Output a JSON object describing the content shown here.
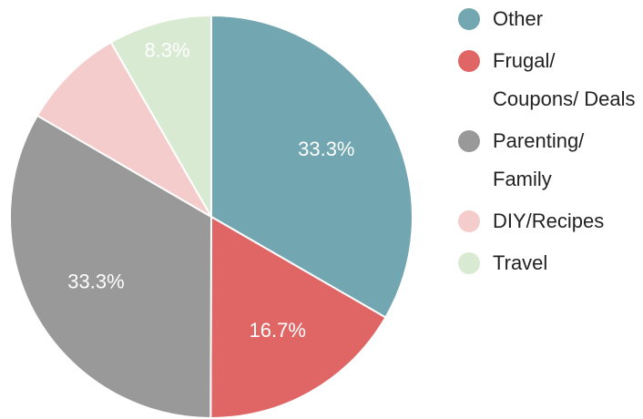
{
  "chart_data": {
    "type": "pie",
    "categories": [
      "Other",
      "Frugal/ Coupons/ Deals",
      "Parenting/ Family",
      "DIY/Recipes",
      "Travel"
    ],
    "values": [
      33.3,
      16.7,
      33.3,
      8.3,
      8.3
    ],
    "value_labels": [
      "33.3%",
      "16.7%",
      "33.3%",
      null,
      "8.3%"
    ],
    "colors": [
      "#72a6b0",
      "#e06666",
      "#999999",
      "#f4cccc",
      "#d9ead3"
    ],
    "legend": "right"
  }
}
